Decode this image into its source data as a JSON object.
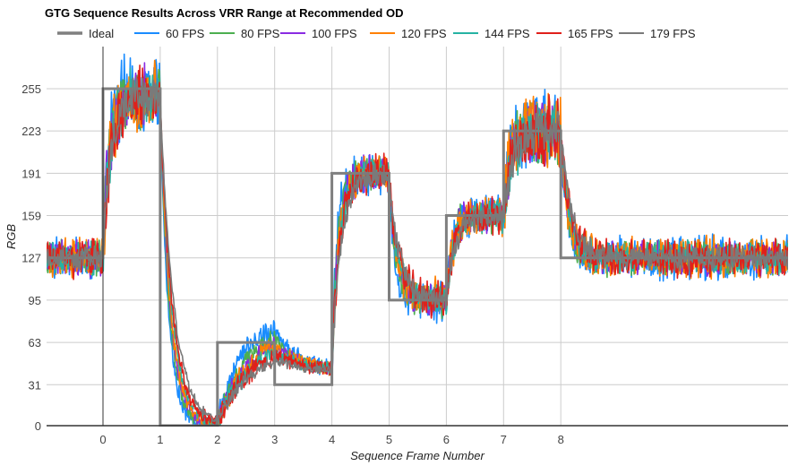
{
  "chart_data": {
    "type": "line",
    "title": "GTG Sequence Results Across VRR Range at Recommended OD",
    "xlabel": "Sequence Frame Number",
    "ylabel": "RGB",
    "xlim": [
      -1,
      12
    ],
    "ylim": [
      0,
      287
    ],
    "x_ticks": [
      "0",
      "1",
      "2",
      "3",
      "4",
      "5",
      "6",
      "7",
      "8"
    ],
    "x_tick_values": [
      0,
      1,
      2,
      3,
      4,
      5,
      6,
      7,
      8
    ],
    "y_ticks": [
      "0",
      "31",
      "63",
      "95",
      "127",
      "159",
      "191",
      "223",
      "255"
    ],
    "y_tick_values": [
      0,
      31,
      63,
      95,
      127,
      159,
      191,
      223,
      255
    ],
    "grid": true,
    "legend_position": "top",
    "ideal": {
      "name": "Ideal",
      "color": "#7f7f7f",
      "steps": [
        {
          "from": -1,
          "to": 0,
          "value": 127
        },
        {
          "from": 0,
          "to": 1,
          "value": 255
        },
        {
          "from": 1,
          "to": 2,
          "value": 0
        },
        {
          "from": 2,
          "to": 3,
          "value": 63
        },
        {
          "from": 3,
          "to": 4,
          "value": 31
        },
        {
          "from": 4,
          "to": 5,
          "value": 191
        },
        {
          "from": 5,
          "to": 6,
          "value": 95
        },
        {
          "from": 6,
          "to": 7,
          "value": 159
        },
        {
          "from": 7,
          "to": 8,
          "value": 223
        },
        {
          "from": 8,
          "to": 12,
          "value": 127
        }
      ]
    },
    "series": [
      {
        "name": "60 FPS",
        "color": "#1a8cff",
        "noise": 1.25,
        "speed": 1.35,
        "overshoot": 1.35
      },
      {
        "name": "80 FPS",
        "color": "#4caf50",
        "noise": 1.0,
        "speed": 1.2,
        "overshoot": 1.2
      },
      {
        "name": "100 FPS",
        "color": "#8a2be2",
        "noise": 1.05,
        "speed": 1.1,
        "overshoot": 1.1
      },
      {
        "name": "120 FPS",
        "color": "#ff8000",
        "noise": 1.2,
        "speed": 1.05,
        "overshoot": 1.05
      },
      {
        "name": "144 FPS",
        "color": "#26b3a3",
        "noise": 0.95,
        "speed": 0.95,
        "overshoot": 0.95
      },
      {
        "name": "165 FPS",
        "color": "#e0201b",
        "noise": 1.1,
        "speed": 0.9,
        "overshoot": 0.9
      },
      {
        "name": "179 FPS",
        "color": "#7a7a7a",
        "noise": 0.7,
        "speed": 0.8,
        "overshoot": 0.8
      }
    ],
    "legend": [
      "Ideal",
      "60 FPS",
      "80 FPS",
      "100 FPS",
      "120 FPS",
      "144 FPS",
      "165 FPS",
      "179 FPS"
    ]
  }
}
